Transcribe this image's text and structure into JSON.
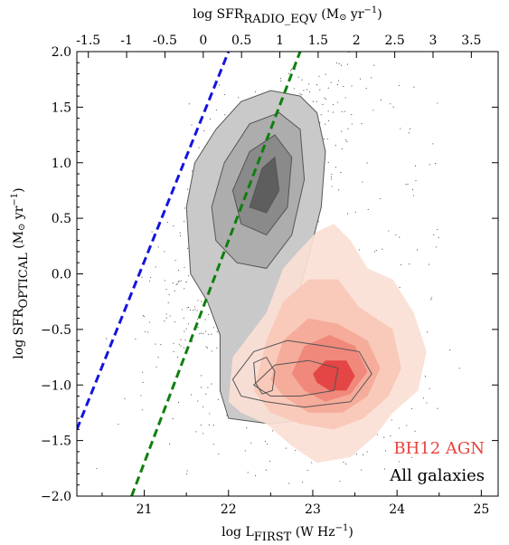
{
  "chart_data": {
    "type": "scatter",
    "x_axis": {
      "label_main": "log L",
      "label_sub": "FIRST",
      "label_unit": " (W Hz",
      "label_unit_sup": "−1",
      "label_close": ")",
      "range": [
        20.2,
        25.2
      ],
      "ticks": [
        21,
        22,
        23,
        24,
        25
      ],
      "tick_labels": [
        "21",
        "22",
        "23",
        "24",
        "25"
      ]
    },
    "top_axis": {
      "label_main": "log SFR",
      "label_sub": "RADIO_EQV",
      "label_unit": " (M",
      "label_odot": "⊙",
      "label_unit2": " yr",
      "label_unit_sup": "−1",
      "label_close": ")",
      "range": [
        -1.65,
        3.85
      ],
      "ticks": [
        -1.5,
        -1,
        -0.5,
        0,
        0.5,
        1,
        1.5,
        2,
        2.5,
        3,
        3.5
      ],
      "tick_labels": [
        "-1.5",
        "-1",
        "-0.5",
        "0",
        "0.5",
        "1",
        "1.5",
        "2",
        "2.5",
        "3",
        "3.5"
      ]
    },
    "y_axis": {
      "label_main": "log SFR",
      "label_sub": "OPTICAL",
      "label_unit": " (M",
      "label_odot": "⊙",
      "label_unit2": " yr",
      "label_unit_sup": "−1",
      "label_close": ")",
      "range": [
        -2.0,
        2.0
      ],
      "ticks": [
        -2.0,
        -1.5,
        -1.0,
        -0.5,
        0.0,
        0.5,
        1.0,
        1.5,
        2.0
      ],
      "tick_labels": [
        "−2.0",
        "−1.5",
        "−1.0",
        "−0.5",
        "0.0",
        "0.5",
        "1.0",
        "1.5",
        "2.0"
      ]
    },
    "series": [
      {
        "name": "BH12 AGN",
        "kind": "filled-density-contours",
        "color": "#e8413c",
        "levels": [
          {
            "fill": "#fbe0d6",
            "polygon": [
              [
                22.0,
                -1.15
              ],
              [
                22.05,
                -0.75
              ],
              [
                22.45,
                -0.35
              ],
              [
                22.65,
                0.05
              ],
              [
                22.85,
                0.22
              ],
              [
                23.05,
                0.38
              ],
              [
                23.25,
                0.45
              ],
              [
                23.45,
                0.3
              ],
              [
                23.65,
                0.05
              ],
              [
                23.95,
                -0.05
              ],
              [
                24.2,
                -0.35
              ],
              [
                24.35,
                -0.7
              ],
              [
                24.25,
                -1.05
              ],
              [
                23.95,
                -1.25
              ],
              [
                23.75,
                -1.45
              ],
              [
                23.45,
                -1.65
              ],
              [
                23.05,
                -1.7
              ],
              [
                22.75,
                -1.55
              ],
              [
                22.45,
                -1.35
              ],
              [
                22.15,
                -1.25
              ]
            ]
          },
          {
            "fill": "#f8c7b6",
            "polygon": [
              [
                22.3,
                -1.05
              ],
              [
                22.45,
                -0.6
              ],
              [
                22.65,
                -0.25
              ],
              [
                22.95,
                -0.05
              ],
              [
                23.3,
                -0.05
              ],
              [
                23.55,
                -0.3
              ],
              [
                23.95,
                -0.5
              ],
              [
                24.05,
                -0.85
              ],
              [
                23.9,
                -1.1
              ],
              [
                23.6,
                -1.3
              ],
              [
                23.25,
                -1.4
              ],
              [
                22.85,
                -1.35
              ],
              [
                22.5,
                -1.25
              ]
            ]
          },
          {
            "fill": "#f4a997",
            "polygon": [
              [
                22.5,
                -0.95
              ],
              [
                22.65,
                -0.6
              ],
              [
                22.95,
                -0.4
              ],
              [
                23.3,
                -0.45
              ],
              [
                23.65,
                -0.6
              ],
              [
                23.8,
                -0.85
              ],
              [
                23.65,
                -1.1
              ],
              [
                23.35,
                -1.25
              ],
              [
                22.95,
                -1.25
              ],
              [
                22.65,
                -1.1
              ]
            ]
          },
          {
            "fill": "#ef8578",
            "polygon": [
              [
                22.75,
                -0.9
              ],
              [
                22.9,
                -0.65
              ],
              [
                23.2,
                -0.55
              ],
              [
                23.5,
                -0.65
              ],
              [
                23.65,
                -0.88
              ],
              [
                23.45,
                -1.08
              ],
              [
                23.15,
                -1.15
              ],
              [
                22.9,
                -1.05
              ]
            ]
          },
          {
            "fill": "#e2403f",
            "polygon": [
              [
                23.0,
                -0.9
              ],
              [
                23.15,
                -0.78
              ],
              [
                23.4,
                -0.78
              ],
              [
                23.5,
                -0.92
              ],
              [
                23.4,
                -1.05
              ],
              [
                23.2,
                -1.05
              ],
              [
                23.05,
                -0.98
              ]
            ]
          }
        ]
      },
      {
        "name": "All galaxies",
        "kind": "filled-density-contours",
        "color": "#000000",
        "levels": [
          {
            "fill": "#c9c9c9",
            "polygon": [
              [
                21.55,
                0.0
              ],
              [
                21.5,
                0.6
              ],
              [
                21.6,
                1.0
              ],
              [
                21.85,
                1.3
              ],
              [
                22.15,
                1.55
              ],
              [
                22.5,
                1.65
              ],
              [
                22.85,
                1.6
              ],
              [
                23.05,
                1.45
              ],
              [
                23.15,
                1.1
              ],
              [
                23.1,
                0.6
              ],
              [
                22.95,
                0.15
              ],
              [
                22.8,
                -0.25
              ],
              [
                22.95,
                -0.45
              ],
              [
                23.2,
                -0.5
              ],
              [
                23.65,
                -0.6
              ],
              [
                23.85,
                -0.85
              ],
              [
                23.55,
                -1.15
              ],
              [
                23.0,
                -1.3
              ],
              [
                22.5,
                -1.35
              ],
              [
                22.0,
                -1.3
              ],
              [
                21.9,
                -1.05
              ],
              [
                21.9,
                -0.55
              ],
              [
                21.75,
                -0.25
              ]
            ]
          },
          {
            "fill": "#adadad",
            "polygon": [
              [
                21.8,
                0.6
              ],
              [
                21.95,
                1.0
              ],
              [
                22.25,
                1.35
              ],
              [
                22.6,
                1.45
              ],
              [
                22.85,
                1.3
              ],
              [
                22.9,
                0.85
              ],
              [
                22.75,
                0.35
              ],
              [
                22.45,
                0.05
              ],
              [
                22.1,
                0.1
              ],
              [
                21.85,
                0.3
              ]
            ]
          },
          {
            "fill": "#8a8a8a",
            "polygon": [
              [
                22.05,
                0.75
              ],
              [
                22.25,
                1.1
              ],
              [
                22.55,
                1.25
              ],
              [
                22.75,
                1.05
              ],
              [
                22.7,
                0.6
              ],
              [
                22.45,
                0.35
              ],
              [
                22.15,
                0.45
              ]
            ]
          },
          {
            "fill": "#5e5e5e",
            "polygon": [
              [
                22.25,
                0.6
              ],
              [
                22.4,
                0.95
              ],
              [
                22.55,
                1.05
              ],
              [
                22.6,
                0.75
              ],
              [
                22.45,
                0.55
              ]
            ]
          }
        ],
        "line_contours": [
          [
            [
              22.05,
              -0.95
            ],
            [
              22.3,
              -0.7
            ],
            [
              22.7,
              -0.6
            ],
            [
              23.15,
              -0.65
            ],
            [
              23.55,
              -0.7
            ],
            [
              23.7,
              -0.9
            ],
            [
              23.45,
              -1.15
            ],
            [
              22.9,
              -1.2
            ],
            [
              22.45,
              -1.15
            ],
            [
              22.15,
              -1.1
            ]
          ],
          [
            [
              22.3,
              -1.0
            ],
            [
              22.55,
              -0.82
            ],
            [
              22.95,
              -0.78
            ],
            [
              23.3,
              -0.85
            ],
            [
              23.25,
              -1.05
            ],
            [
              22.85,
              -1.1
            ],
            [
              22.5,
              -1.1
            ]
          ],
          [
            [
              22.3,
              -0.8
            ],
            [
              22.45,
              -0.75
            ],
            [
              22.55,
              -0.88
            ],
            [
              22.52,
              -1.05
            ],
            [
              22.4,
              -1.08
            ],
            [
              22.32,
              -0.98
            ]
          ]
        ]
      }
    ],
    "reference_lines": [
      {
        "color": "#1414dc",
        "style": "dashed",
        "points": [
          [
            20.2,
            -1.4
          ],
          [
            22.0,
            2.0
          ]
        ]
      },
      {
        "color": "#0e7f0e",
        "style": "dashed",
        "points": [
          [
            20.85,
            -2.0
          ],
          [
            22.85,
            2.0
          ]
        ]
      }
    ],
    "legend": {
      "placement": "bottom-right",
      "entries": [
        {
          "label": "BH12 AGN",
          "color": "#e8413c"
        },
        {
          "label": "All galaxies",
          "color": "#000000"
        }
      ]
    },
    "grid": false
  }
}
